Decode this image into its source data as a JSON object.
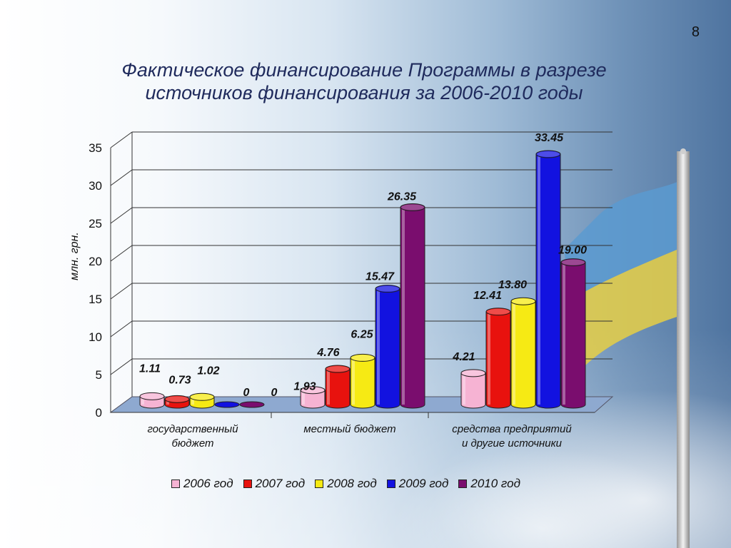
{
  "page_number": "8",
  "title_line1": "Фактическое финансирование Программы в разрезе",
  "title_line2": "источников финансирования за 2006-2010 годы",
  "colors": {
    "2006": "#f6b3d3",
    "2007": "#e8120e",
    "2008": "#f6ea14",
    "2009": "#1212e0",
    "2010": "#7a0d6e"
  },
  "chart_data": {
    "type": "bar",
    "title": "Фактическое финансирование Программы в разрезе источников финансирования за 2006-2010 годы",
    "ylabel": "млн. грн.",
    "xlabel": "",
    "ylim": [
      0,
      35
    ],
    "yticks": [
      "0",
      "5",
      "10",
      "15",
      "20",
      "25",
      "30",
      "35"
    ],
    "categories": [
      {
        "line1": "государственный",
        "line2": "бюджет"
      },
      {
        "line1": "местный бюджет",
        "line2": ""
      },
      {
        "line1": "средства предприятий",
        "line2": "и другие источники"
      }
    ],
    "series": [
      {
        "name": "2006 год",
        "values": [
          1.11,
          1.93,
          4.21
        ],
        "labels": [
          "1.11",
          "1.93",
          "4.21"
        ]
      },
      {
        "name": "2007 год",
        "values": [
          0.73,
          4.76,
          12.41
        ],
        "labels": [
          "0.73",
          "4.76",
          "12.41"
        ]
      },
      {
        "name": "2008 год",
        "values": [
          1.02,
          6.25,
          13.8
        ],
        "labels": [
          "1.02",
          "6.25",
          "13.80"
        ]
      },
      {
        "name": "2009 год",
        "values": [
          0,
          15.47,
          33.45
        ],
        "labels": [
          "0",
          "15.47",
          "33.45"
        ]
      },
      {
        "name": "2010 год",
        "values": [
          0,
          26.35,
          19.0
        ],
        "labels": [
          "0",
          "26.35",
          "19.00"
        ]
      }
    ],
    "legend_position": "bottom",
    "grid": true
  }
}
